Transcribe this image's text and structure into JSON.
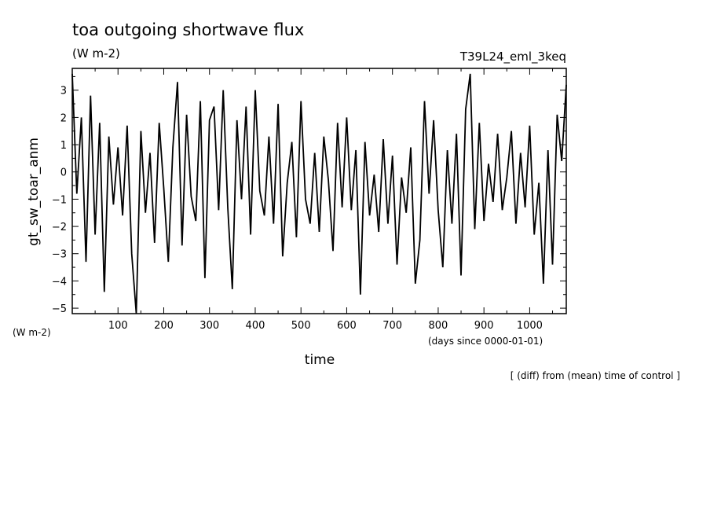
{
  "chart_data": {
    "type": "line",
    "title": "toa outgoing shortwave flux",
    "units": "(W m-2)",
    "run_label": "T39L24_eml_3keq",
    "xlabel": "time",
    "x_units": "(days since 0000-01-01)",
    "ylabel": "gt_sw_toar_anm",
    "y_units": "(W m-2)",
    "note": "[ (diff) from (mean) time of control ]",
    "xlim": [
      0,
      1080
    ],
    "ylim": [
      -5.2,
      3.8
    ],
    "x_ticks": [
      100,
      200,
      300,
      400,
      500,
      600,
      700,
      800,
      900,
      1000
    ],
    "y_ticks": [
      -5,
      -4,
      -3,
      -2,
      -1,
      0,
      1,
      2,
      3
    ],
    "grid": false,
    "series": [
      {
        "color": "#000000",
        "x": [
          0,
          10,
          20,
          30,
          40,
          50,
          60,
          70,
          80,
          90,
          100,
          110,
          120,
          130,
          140,
          150,
          160,
          170,
          180,
          190,
          200,
          210,
          220,
          230,
          240,
          250,
          260,
          270,
          280,
          290,
          300,
          310,
          320,
          330,
          340,
          350,
          360,
          370,
          380,
          390,
          400,
          410,
          420,
          430,
          440,
          450,
          460,
          470,
          480,
          490,
          500,
          510,
          520,
          530,
          540,
          550,
          560,
          570,
          580,
          590,
          600,
          610,
          620,
          630,
          640,
          650,
          660,
          670,
          680,
          690,
          700,
          710,
          720,
          730,
          740,
          750,
          760,
          770,
          780,
          790,
          800,
          810,
          820,
          830,
          840,
          850,
          860,
          870,
          880,
          890,
          900,
          910,
          920,
          930,
          940,
          950,
          960,
          970,
          980,
          990,
          1000,
          1010,
          1020,
          1030,
          1040,
          1050,
          1060,
          1070,
          1080
        ],
        "y": [
          3.6,
          -0.8,
          2.0,
          -3.3,
          2.8,
          -2.3,
          1.8,
          -4.4,
          1.3,
          -1.2,
          0.9,
          -1.6,
          1.7,
          -3.0,
          -5.2,
          1.5,
          -1.5,
          0.7,
          -2.6,
          1.8,
          -0.6,
          -3.3,
          0.9,
          3.3,
          -2.7,
          2.1,
          -0.9,
          -1.8,
          2.6,
          -3.9,
          1.9,
          2.4,
          -1.4,
          3.0,
          -1.3,
          -4.3,
          1.9,
          -1.0,
          2.4,
          -2.3,
          3.0,
          -0.7,
          -1.6,
          1.3,
          -1.9,
          2.5,
          -3.1,
          -0.4,
          1.1,
          -2.4,
          2.6,
          -1.0,
          -1.9,
          0.7,
          -2.2,
          1.3,
          -0.3,
          -2.9,
          1.8,
          -1.3,
          2.0,
          -1.4,
          0.8,
          -4.5,
          1.1,
          -1.6,
          -0.1,
          -2.2,
          1.2,
          -1.9,
          0.6,
          -3.4,
          -0.2,
          -1.5,
          0.9,
          -4.1,
          -2.5,
          2.6,
          -0.8,
          1.9,
          -1.4,
          -3.5,
          0.8,
          -1.9,
          1.4,
          -3.8,
          2.3,
          3.6,
          -2.1,
          1.8,
          -1.8,
          0.3,
          -1.1,
          1.4,
          -1.4,
          -0.2,
          1.5,
          -1.9,
          0.7,
          -1.3,
          1.7,
          -2.3,
          -0.4,
          -4.1,
          0.8,
          -3.4,
          2.1,
          0.4,
          3.2
        ]
      }
    ]
  }
}
